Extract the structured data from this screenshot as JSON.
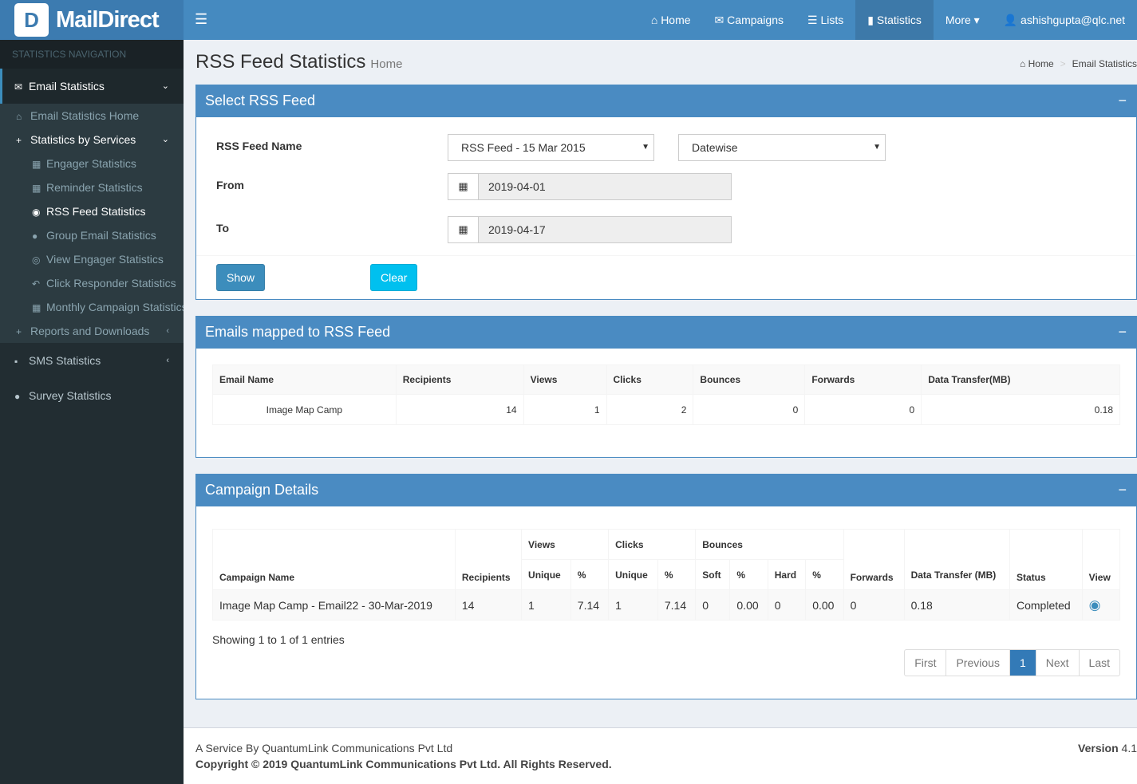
{
  "app": {
    "name": "MailDirect",
    "logo_letter": "D"
  },
  "topnav": {
    "menu_icon": "hamburger-icon",
    "items": [
      {
        "icon": "⌂",
        "label": "Home"
      },
      {
        "icon": "✉",
        "label": "Campaigns"
      },
      {
        "icon": "☰",
        "label": "Lists"
      },
      {
        "icon": "▮",
        "label": "Statistics",
        "active": true
      },
      {
        "icon": "",
        "label": "More ▾"
      },
      {
        "icon": "👤",
        "label": "ashishgupta@qlc.net"
      }
    ]
  },
  "sidebar": {
    "header": "STATISTICS NAVIGATION",
    "email_statistics": "Email Statistics",
    "sub": [
      {
        "icon": "⌂",
        "label": "Email Statistics Home",
        "level": 1
      },
      {
        "icon": "+",
        "label": "Statistics by Services",
        "level": 1,
        "white": true,
        "chev": "⌄"
      },
      {
        "icon": "▦",
        "label": "Engager Statistics",
        "level": 2
      },
      {
        "icon": "▦",
        "label": "Reminder Statistics",
        "level": 2
      },
      {
        "icon": "◉",
        "label": "RSS Feed Statistics",
        "level": 2,
        "white": true
      },
      {
        "icon": "●",
        "label": "Group Email Statistics",
        "level": 2
      },
      {
        "icon": "◎",
        "label": "View Engager Statistics",
        "level": 2
      },
      {
        "icon": "↶",
        "label": "Click Responder Statistics",
        "level": 2
      },
      {
        "icon": "▦",
        "label": "Monthly Campaign Statistics",
        "level": 2
      },
      {
        "icon": "+",
        "label": "Reports and Downloads",
        "level": 1,
        "chev": "‹"
      }
    ],
    "sms": "SMS Statistics",
    "survey": "Survey Statistics"
  },
  "page": {
    "title": "RSS Feed Statistics",
    "subtitle": "Home",
    "breadcrumb": [
      "Home",
      "Email Statistics"
    ]
  },
  "select_box": {
    "title": "Select RSS Feed",
    "feed_label": "RSS Feed Name",
    "feed_value": "RSS Feed - 15 Mar 2015",
    "mode_value": "Datewise",
    "from_label": "From",
    "from_value": "2019-04-01",
    "to_label": "To",
    "to_value": "2019-04-17",
    "show": "Show",
    "clear": "Clear",
    "colors": {
      "show": "#3c8dbc",
      "clear": "#00c0ef"
    }
  },
  "emails_box": {
    "title": "Emails mapped to RSS Feed",
    "headers": [
      "Email Name",
      "Recipients",
      "Views",
      "Clicks",
      "Bounces",
      "Forwards",
      "Data Transfer(MB)"
    ],
    "rows": [
      [
        "Image Map Camp",
        "14",
        "1",
        "2",
        "0",
        "0",
        "0.18"
      ]
    ]
  },
  "campaign_box": {
    "title": "Campaign Details",
    "group_headers": {
      "views": "Views",
      "clicks": "Clicks",
      "bounces": "Bounces"
    },
    "headers": [
      "Campaign Name",
      "Recipients",
      "Unique",
      "%",
      "Unique",
      "%",
      "Soft",
      "%",
      "Hard",
      "%",
      "Forwards",
      "Data Transfer (MB)",
      "Status",
      "View"
    ],
    "rows": [
      [
        "Image Map Camp - Email22 - 30-Mar-2019",
        "14",
        "1",
        "7.14",
        "1",
        "7.14",
        "0",
        "0.00",
        "0",
        "0.00",
        "0",
        "0.18",
        "Completed"
      ]
    ],
    "info": "Showing 1 to 1 of 1 entries",
    "pager": [
      "First",
      "Previous",
      "1",
      "Next",
      "Last"
    ]
  },
  "footer": {
    "service": "A Service By QuantumLink Communications Pvt Ltd",
    "copyright": "Copyright © 2019 QuantumLink Communications Pvt Ltd. All Rights Reserved.",
    "version_label": "Version",
    "version": "4.1"
  }
}
